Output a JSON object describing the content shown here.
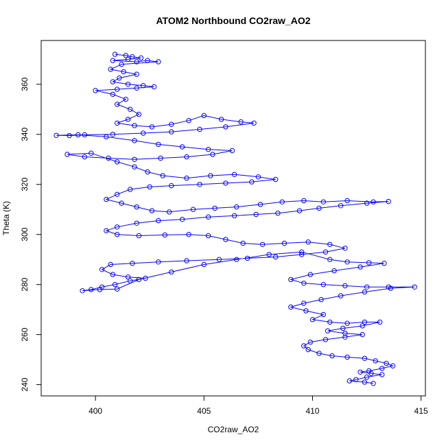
{
  "chart_data": {
    "type": "scatter",
    "title": "ATOM2 Northbound CO2raw_AO2",
    "xlabel": "CO2raw_AO2",
    "ylabel": "Theta (K)",
    "xlim": [
      397.5,
      415.2
    ],
    "ylim": [
      235.5,
      377.5
    ],
    "x_ticks": [
      400,
      405,
      410,
      415
    ],
    "y_ticks": [
      240,
      260,
      280,
      300,
      320,
      340,
      360
    ],
    "grid": false,
    "legend": "none",
    "marker": "open-circle",
    "lines_connect_points": true,
    "color": "#0000ff",
    "series": [
      {
        "points": [
          [
            400.9,
            372.0
          ],
          [
            401.4,
            371.5
          ],
          [
            401.7,
            371.0
          ],
          [
            402.1,
            370.5
          ],
          [
            401.5,
            370.0
          ],
          [
            400.8,
            369.5
          ],
          [
            401.9,
            369.0
          ],
          [
            402.4,
            369.5
          ],
          [
            402.9,
            369.0
          ],
          [
            401.2,
            368.0
          ],
          [
            400.7,
            366.0
          ],
          [
            401.3,
            365.0
          ],
          [
            401.9,
            364.0
          ],
          [
            401.1,
            362.5
          ],
          [
            400.8,
            361.0
          ],
          [
            401.5,
            360.0
          ],
          [
            402.2,
            359.5
          ],
          [
            402.7,
            359.0
          ],
          [
            401.9,
            358.5
          ],
          [
            401.0,
            358.0
          ],
          [
            400.0,
            357.5
          ],
          [
            400.8,
            356.0
          ],
          [
            401.4,
            354.0
          ],
          [
            401.0,
            352.0
          ],
          [
            401.6,
            350.0
          ],
          [
            402.0,
            348.0
          ],
          [
            401.5,
            346.0
          ],
          [
            401.0,
            344.5
          ],
          [
            401.8,
            343.5
          ],
          [
            402.6,
            343.0
          ],
          [
            403.5,
            344.0
          ],
          [
            404.3,
            345.5
          ],
          [
            405.0,
            347.5
          ],
          [
            405.8,
            346.0
          ],
          [
            406.7,
            345.0
          ],
          [
            407.3,
            344.5
          ],
          [
            406.0,
            343.0
          ],
          [
            404.8,
            342.0
          ],
          [
            403.5,
            341.0
          ],
          [
            402.2,
            340.5
          ],
          [
            400.8,
            340.0
          ],
          [
            399.5,
            339.8
          ],
          [
            398.8,
            339.5
          ],
          [
            398.2,
            339.6
          ],
          [
            399.2,
            339.8
          ],
          [
            400.5,
            339.0
          ],
          [
            401.8,
            337.5
          ],
          [
            402.9,
            336.0
          ],
          [
            404.0,
            335.0
          ],
          [
            405.2,
            334.0
          ],
          [
            406.3,
            333.5
          ],
          [
            405.4,
            332.0
          ],
          [
            404.2,
            331.0
          ],
          [
            403.0,
            330.5
          ],
          [
            401.8,
            330.0
          ],
          [
            400.6,
            330.5
          ],
          [
            399.5,
            331.0
          ],
          [
            398.7,
            332.0
          ],
          [
            399.8,
            332.5
          ],
          [
            401.0,
            329.0
          ],
          [
            401.8,
            327.0
          ],
          [
            402.4,
            325.0
          ],
          [
            403.1,
            323.5
          ],
          [
            404.2,
            322.5
          ],
          [
            405.3,
            323.5
          ],
          [
            406.4,
            324.0
          ],
          [
            407.5,
            323.0
          ],
          [
            408.3,
            322.0
          ],
          [
            407.2,
            321.0
          ],
          [
            406.0,
            320.5
          ],
          [
            404.8,
            320.0
          ],
          [
            403.5,
            319.5
          ],
          [
            402.5,
            319.0
          ],
          [
            401.6,
            318.0
          ],
          [
            401.0,
            316.0
          ],
          [
            400.5,
            314.0
          ],
          [
            401.2,
            312.5
          ],
          [
            401.9,
            311.0
          ],
          [
            402.6,
            309.5
          ],
          [
            403.4,
            309.0
          ],
          [
            404.5,
            310.0
          ],
          [
            405.5,
            310.5
          ],
          [
            406.5,
            311.0
          ],
          [
            407.6,
            312.0
          ],
          [
            408.6,
            313.0
          ],
          [
            409.6,
            313.5
          ],
          [
            410.5,
            313.0
          ],
          [
            411.6,
            313.5
          ],
          [
            412.8,
            313.0
          ],
          [
            413.5,
            313.2
          ],
          [
            412.5,
            312.5
          ],
          [
            411.3,
            311.5
          ],
          [
            410.3,
            310.5
          ],
          [
            409.4,
            309.5
          ],
          [
            408.4,
            308.5
          ],
          [
            407.4,
            308.0
          ],
          [
            406.4,
            307.5
          ],
          [
            405.2,
            307.0
          ],
          [
            404.0,
            306.0
          ],
          [
            402.9,
            305.5
          ],
          [
            401.9,
            304.5
          ],
          [
            401.0,
            303.0
          ],
          [
            400.5,
            301.5
          ],
          [
            401.0,
            300.0
          ],
          [
            402.0,
            299.5
          ],
          [
            403.2,
            299.8
          ],
          [
            404.3,
            300.0
          ],
          [
            405.2,
            299.5
          ],
          [
            406.0,
            298.0
          ],
          [
            406.8,
            296.5
          ],
          [
            407.7,
            296.0
          ],
          [
            408.7,
            296.5
          ],
          [
            409.8,
            297.0
          ],
          [
            410.8,
            296.0
          ],
          [
            411.5,
            294.5
          ],
          [
            410.6,
            293.0
          ],
          [
            409.5,
            292.0
          ],
          [
            408.3,
            291.0
          ],
          [
            407.0,
            290.5
          ],
          [
            405.7,
            290.0
          ],
          [
            404.2,
            289.5
          ],
          [
            402.9,
            289.0
          ],
          [
            401.7,
            288.5
          ],
          [
            400.7,
            288.0
          ],
          [
            400.3,
            286.0
          ],
          [
            400.8,
            284.0
          ],
          [
            401.5,
            283.0
          ],
          [
            402.3,
            282.5
          ],
          [
            401.6,
            281.5
          ],
          [
            400.9,
            280.0
          ],
          [
            400.3,
            279.0
          ],
          [
            399.8,
            278.0
          ],
          [
            399.4,
            277.5
          ],
          [
            400.2,
            278.0
          ],
          [
            401.0,
            278.2
          ],
          [
            402.0,
            282.0
          ],
          [
            403.5,
            285.0
          ],
          [
            405.0,
            288.0
          ],
          [
            406.5,
            290.0
          ],
          [
            408.0,
            292.0
          ],
          [
            409.5,
            293.0
          ],
          [
            410.8,
            290.0
          ],
          [
            411.6,
            289.0
          ],
          [
            412.6,
            288.7
          ],
          [
            413.3,
            288.5
          ],
          [
            412.2,
            287.0
          ],
          [
            411.0,
            285.5
          ],
          [
            409.9,
            284.0
          ],
          [
            409.0,
            282.0
          ],
          [
            409.6,
            280.5
          ],
          [
            410.5,
            280.0
          ],
          [
            411.5,
            279.5
          ],
          [
            412.5,
            279.0
          ],
          [
            413.5,
            279.0
          ],
          [
            414.7,
            279.0
          ],
          [
            413.6,
            278.5
          ],
          [
            412.4,
            277.0
          ],
          [
            411.3,
            275.5
          ],
          [
            410.4,
            274.0
          ],
          [
            409.6,
            272.5
          ],
          [
            409.0,
            271.0
          ],
          [
            409.7,
            269.5
          ],
          [
            410.5,
            268.0
          ],
          [
            410.0,
            266.0
          ],
          [
            410.8,
            265.0
          ],
          [
            411.6,
            264.5
          ],
          [
            412.4,
            265.0
          ],
          [
            413.1,
            265.0
          ],
          [
            412.3,
            263.5
          ],
          [
            411.4,
            262.5
          ],
          [
            410.7,
            261.5
          ],
          [
            411.5,
            260.5
          ],
          [
            412.3,
            260.0
          ],
          [
            411.5,
            259.0
          ],
          [
            410.6,
            258.0
          ],
          [
            409.9,
            257.0
          ],
          [
            409.6,
            255.5
          ],
          [
            409.8,
            254.0
          ],
          [
            410.3,
            252.5
          ],
          [
            410.9,
            251.5
          ],
          [
            411.6,
            251.0
          ],
          [
            412.4,
            250.5
          ],
          [
            412.9,
            249.5
          ],
          [
            413.4,
            248.5
          ],
          [
            413.7,
            247.5
          ],
          [
            413.2,
            246.5
          ],
          [
            412.6,
            245.5
          ],
          [
            412.2,
            245.0
          ],
          [
            412.7,
            244.5
          ],
          [
            413.2,
            244.0
          ],
          [
            412.5,
            243.0
          ],
          [
            412.0,
            242.0
          ],
          [
            411.7,
            241.5
          ],
          [
            412.4,
            241.0
          ],
          [
            412.8,
            240.5
          ]
        ]
      }
    ]
  }
}
